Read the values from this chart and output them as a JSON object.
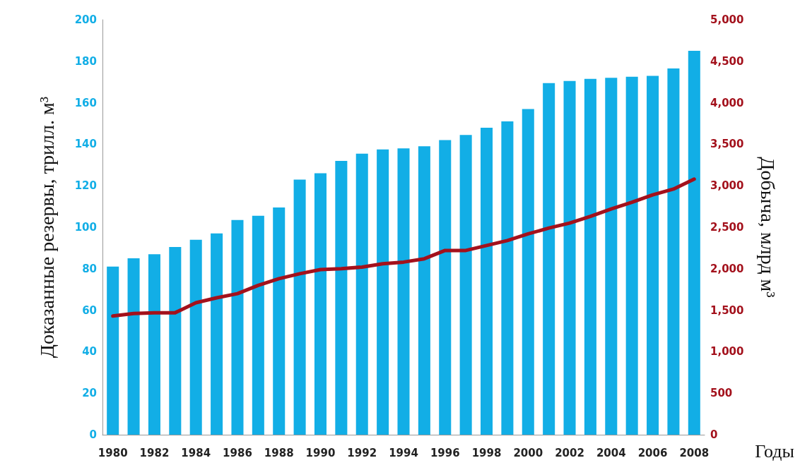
{
  "chart_data": {
    "type": "bar",
    "xlabel": "Годы",
    "ylabel": "Доказанные резервы, трилл. м³",
    "y2label": "Добыча, млрд м³",
    "categories": [
      "1980",
      null,
      "1982",
      null,
      "1984",
      null,
      "1986",
      null,
      "1988",
      null,
      "1990",
      null,
      "1992",
      null,
      "1994",
      null,
      "1996",
      null,
      "1998",
      null,
      "2000",
      null,
      "2002",
      null,
      "2004",
      null,
      "2006",
      null,
      "2008"
    ],
    "series": [
      {
        "color": "#12aee6",
        "values": [
          81,
          85,
          87,
          90.5,
          94,
          97,
          103.5,
          105.5,
          109.5,
          123,
          126,
          132,
          135.5,
          137.5,
          138,
          139,
          142,
          144.5,
          148,
          151,
          157,
          169.5,
          170.5,
          171.5,
          172,
          172.5,
          173,
          176.5,
          185
        ]
      },
      {
        "type": "line",
        "axis": "y2",
        "color": "#a3111c",
        "values": [
          1430,
          1460,
          1470,
          1470,
          1590,
          1650,
          1700,
          1800,
          1880,
          1940,
          1990,
          2000,
          2020,
          2060,
          2080,
          2120,
          2220,
          2220,
          2280,
          2340,
          2420,
          2490,
          2550,
          2630,
          2720,
          2800,
          2890,
          2960,
          3080
        ]
      }
    ],
    "ylim": [
      0,
      200
    ],
    "yticks": [
      0,
      20,
      40,
      60,
      80,
      100,
      120,
      140,
      160,
      180,
      200
    ],
    "y2lim": [
      0,
      5000
    ],
    "y2ticks": [
      0,
      500,
      {
        "value": 1000,
        "label": "1,000"
      },
      {
        "value": 1500,
        "label": "1,500"
      },
      {
        "value": 2000,
        "label": "2,000"
      },
      {
        "value": 2500,
        "label": "2,500"
      },
      {
        "value": 3000,
        "label": "3,000"
      },
      {
        "value": 3500,
        "label": "3,500"
      },
      {
        "value": 4000,
        "label": "4,000"
      },
      {
        "value": 4500,
        "label": "4,500"
      },
      {
        "value": 5000,
        "label": "5,000"
      }
    ],
    "grid": false,
    "marker": "none",
    "line_style": "solid"
  }
}
